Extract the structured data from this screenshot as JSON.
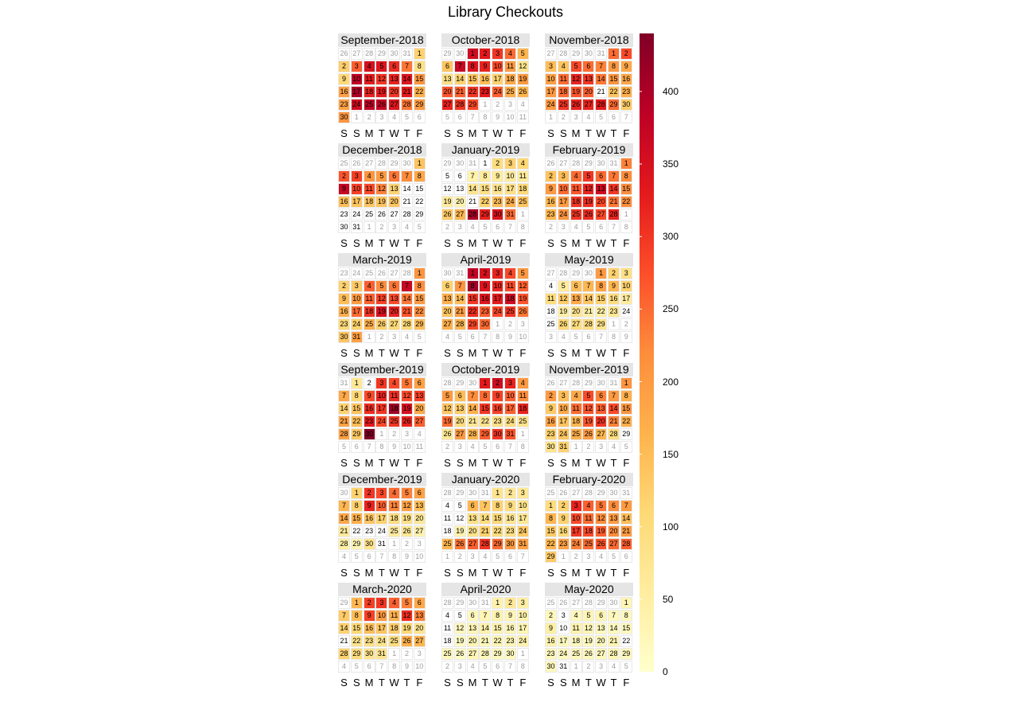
{
  "chart_data": {
    "type": "heatmap",
    "title": "Library Checkouts",
    "weekday_labels": [
      "S",
      "S",
      "M",
      "T",
      "W",
      "T",
      "F"
    ],
    "color_scale": {
      "min": 0,
      "max": 440,
      "ticks": [
        0,
        50,
        100,
        150,
        200,
        250,
        300,
        350,
        400
      ],
      "colors": [
        "#ffffcc",
        "#ffeda0",
        "#fed976",
        "#feb24c",
        "#fd8d3c",
        "#fc4e2a",
        "#e31a1c",
        "#bd0026",
        "#800026"
      ]
    },
    "months": [
      {
        "label": "September-2018",
        "start_col": 0,
        "prev_days": 6,
        "prev_last": 31,
        "values": [
          120,
          125,
          260,
          350,
          340,
          310,
          240,
          90,
          110,
          380,
          330,
          300,
          320,
          340,
          210,
          190,
          400,
          320,
          330,
          300,
          330,
          170,
          190,
          360,
          380,
          370,
          340,
          240,
          200,
          210
        ]
      },
      {
        "label": "October-2018",
        "start_col": 2,
        "prev_days": 2,
        "prev_last": 30,
        "values": [
          360,
          330,
          300,
          250,
          160,
          140,
          370,
          340,
          320,
          280,
          200,
          80,
          90,
          120,
          140,
          150,
          120,
          180,
          200,
          270,
          260,
          300,
          330,
          260,
          170,
          160,
          320,
          300,
          280
        ]
      },
      {
        "label": "November-2018",
        "start_col": 5,
        "prev_days": 5,
        "prev_last": 31,
        "values": [
          250,
          280,
          150,
          140,
          280,
          250,
          230,
          200,
          180,
          190,
          250,
          320,
          300,
          240,
          210,
          180,
          200,
          250,
          270,
          260,
          0,
          140,
          170,
          200,
          300,
          320,
          320,
          330,
          250,
          130
        ]
      },
      {
        "label": "December-2018",
        "start_col": 0,
        "prev_days": 6,
        "prev_last": 30,
        "values": [
          140,
          270,
          290,
          210,
          200,
          240,
          220,
          180,
          370,
          290,
          280,
          230,
          120,
          0,
          0,
          150,
          140,
          140,
          140,
          140,
          0,
          0,
          0,
          0,
          0,
          0,
          0,
          0,
          0,
          0,
          0
        ]
      },
      {
        "label": "January-2019",
        "start_col": 3,
        "prev_days": 3,
        "prev_last": 31,
        "values": [
          0,
          100,
          120,
          110,
          0,
          0,
          40,
          60,
          60,
          60,
          60,
          0,
          0,
          80,
          90,
          80,
          90,
          110,
          60,
          40,
          0,
          120,
          150,
          170,
          140,
          130,
          160,
          400,
          320,
          340,
          250
        ]
      },
      {
        "label": "February-2019",
        "start_col": 6,
        "prev_days": 6,
        "prev_last": 31,
        "values": [
          230,
          140,
          150,
          250,
          300,
          250,
          240,
          220,
          200,
          250,
          270,
          320,
          360,
          300,
          220,
          160,
          200,
          300,
          310,
          280,
          240,
          220,
          160,
          210,
          300,
          310,
          280,
          320
        ]
      },
      {
        "label": "March-2019",
        "start_col": 6,
        "prev_days": 6,
        "prev_last": 28,
        "values": [
          210,
          120,
          130,
          260,
          220,
          240,
          370,
          220,
          150,
          200,
          260,
          290,
          280,
          240,
          200,
          170,
          250,
          300,
          350,
          320,
          270,
          220,
          110,
          120,
          170,
          120,
          110,
          110,
          150,
          140,
          190
        ]
      },
      {
        "label": "April-2019",
        "start_col": 2,
        "prev_days": 2,
        "prev_last": 31,
        "values": [
          380,
          350,
          320,
          280,
          200,
          120,
          210,
          410,
          340,
          320,
          280,
          260,
          170,
          150,
          300,
          340,
          330,
          360,
          270,
          140,
          200,
          310,
          260,
          280,
          300,
          240,
          170,
          160,
          280,
          250
        ]
      },
      {
        "label": "May-2019",
        "start_col": 4,
        "prev_days": 4,
        "prev_last": 30,
        "values": [
          200,
          120,
          90,
          0,
          60,
          150,
          160,
          190,
          160,
          120,
          100,
          130,
          180,
          140,
          120,
          100,
          60,
          0,
          50,
          80,
          50,
          50,
          70,
          0,
          0,
          110,
          100,
          100,
          80
        ]
      },
      {
        "label": "September-2019",
        "start_col": 0,
        "prev_days": 1,
        "prev_last": 31,
        "values": [
          70,
          0,
          300,
          280,
          240,
          190,
          180,
          110,
          280,
          320,
          310,
          280,
          290,
          120,
          140,
          310,
          300,
          410,
          350,
          180,
          190,
          150,
          330,
          280,
          300,
          320,
          260,
          190,
          130,
          440
        ]
      },
      {
        "label": "October-2019",
        "start_col": 3,
        "prev_days": 3,
        "prev_last": 30,
        "values": [
          330,
          360,
          320,
          200,
          200,
          150,
          220,
          250,
          290,
          260,
          220,
          140,
          130,
          170,
          300,
          290,
          260,
          320,
          250,
          100,
          70,
          80,
          90,
          100,
          80,
          70,
          200,
          160,
          260,
          300,
          270
        ]
      },
      {
        "label": "November-2019",
        "start_col": 6,
        "prev_days": 6,
        "prev_last": 31,
        "values": [
          210,
          200,
          150,
          180,
          280,
          230,
          200,
          170,
          130,
          180,
          250,
          270,
          260,
          280,
          210,
          190,
          140,
          160,
          270,
          300,
          230,
          170,
          120,
          140,
          170,
          200,
          160,
          100,
          0,
          80,
          120
        ]
      },
      {
        "label": "December-2019",
        "start_col": 0,
        "prev_days": 1,
        "prev_last": 30,
        "values": [
          120,
          300,
          280,
          250,
          230,
          190,
          160,
          120,
          320,
          260,
          230,
          190,
          150,
          180,
          170,
          140,
          120,
          100,
          90,
          70,
          60,
          0,
          0,
          0,
          60,
          70,
          40,
          50,
          30,
          80,
          0
        ]
      },
      {
        "label": "January-2020",
        "start_col": 4,
        "prev_days": 4,
        "prev_last": 31,
        "values": [
          80,
          70,
          70,
          0,
          0,
          160,
          140,
          120,
          100,
          80,
          0,
          0,
          90,
          100,
          110,
          80,
          70,
          0,
          40,
          80,
          120,
          100,
          90,
          130,
          160,
          240,
          260,
          300,
          250,
          200,
          190
        ]
      },
      {
        "label": "February-2020",
        "start_col": 0,
        "prev_days": 7,
        "prev_last": 31,
        "values": [
          100,
          120,
          320,
          260,
          240,
          220,
          200,
          160,
          120,
          280,
          250,
          220,
          200,
          150,
          130,
          110,
          300,
          280,
          260,
          220,
          200,
          160,
          190,
          230,
          250,
          270,
          250,
          260,
          130
        ]
      },
      {
        "label": "March-2020",
        "start_col": 1,
        "prev_days": 1,
        "prev_last": 29,
        "values": [
          160,
          290,
          300,
          260,
          230,
          180,
          130,
          150,
          290,
          200,
          170,
          310,
          230,
          120,
          110,
          150,
          140,
          130,
          110,
          80,
          0,
          80,
          90,
          80,
          100,
          170,
          160,
          120,
          100,
          80,
          80
        ]
      },
      {
        "label": "April-2020",
        "start_col": 4,
        "prev_days": 4,
        "prev_last": 31,
        "values": [
          40,
          70,
          50,
          0,
          0,
          20,
          30,
          40,
          30,
          40,
          0,
          20,
          30,
          40,
          40,
          30,
          30,
          0,
          10,
          30,
          20,
          30,
          30,
          40,
          20,
          10,
          30,
          20,
          20,
          20
        ]
      },
      {
        "label": "May-2020",
        "start_col": 6,
        "prev_days": 6,
        "prev_last": 30,
        "values": [
          30,
          20,
          0,
          20,
          30,
          30,
          20,
          20,
          50,
          0,
          40,
          30,
          20,
          20,
          20,
          40,
          20,
          20,
          20,
          20,
          30,
          0,
          20,
          20,
          20,
          20,
          20,
          30,
          20,
          20,
          0
        ]
      }
    ]
  }
}
